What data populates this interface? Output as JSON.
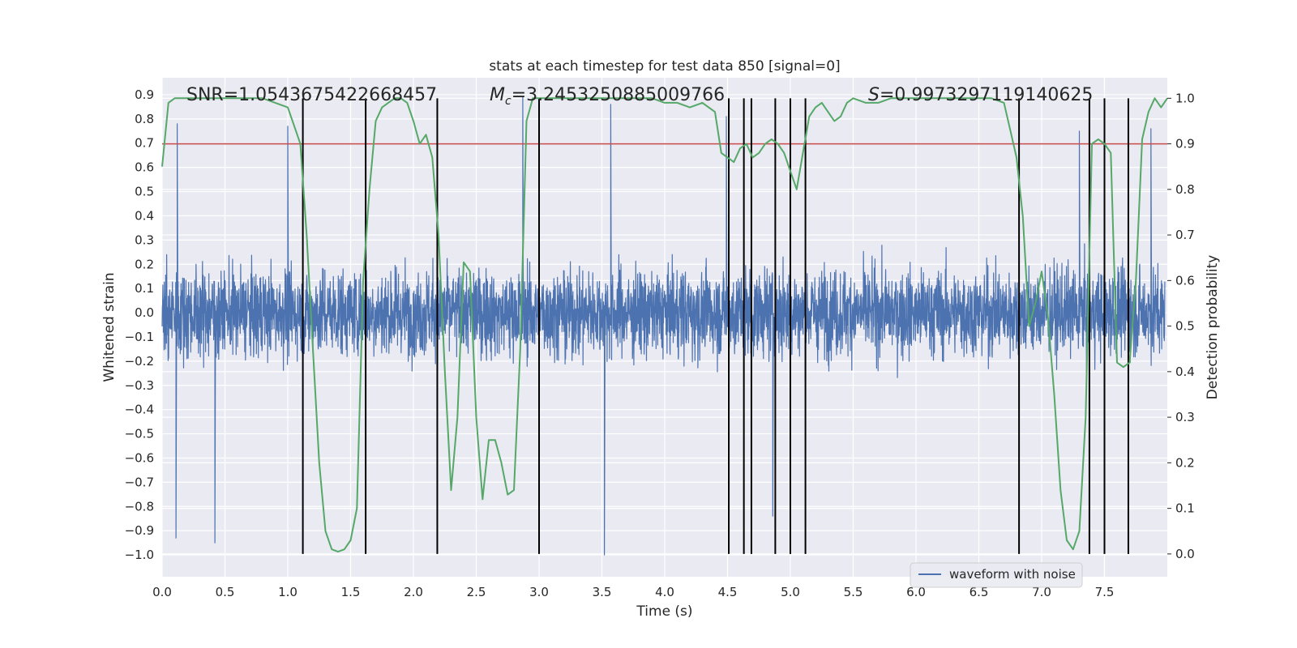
{
  "chart_data": {
    "type": "line",
    "title": "stats at each timestep for test data 850 [signal=0]",
    "xlabel": "Time (s)",
    "ylabel_left": "Whitened strain",
    "ylabel_right": "Detection probability",
    "xlim": [
      0.0,
      8.0
    ],
    "ylim_left": [
      -1.09,
      0.97
    ],
    "ylim_right": [
      -0.05,
      1.045
    ],
    "x_ticks": [
      "0.0",
      "0.5",
      "1.0",
      "1.5",
      "2.0",
      "2.5",
      "3.0",
      "3.5",
      "4.0",
      "4.5",
      "5.0",
      "5.5",
      "6.0",
      "6.5",
      "7.0",
      "7.5"
    ],
    "y_ticks_left": [
      "0.9",
      "0.8",
      "0.7",
      "0.6",
      "0.5",
      "0.4",
      "0.3",
      "0.2",
      "0.1",
      "0.0",
      "-0.1",
      "-0.2",
      "-0.3",
      "-0.4",
      "-0.5",
      "-0.6",
      "-0.7",
      "-0.8",
      "-0.9",
      "-1.0"
    ],
    "y_ticks_right": [
      "1.0",
      "0.9",
      "0.8",
      "0.7",
      "0.6",
      "0.5",
      "0.4",
      "0.3",
      "0.2",
      "0.1",
      "0.0"
    ],
    "annotations": {
      "snr": "SNR=1.0543675422668457",
      "mc_symbol": "M",
      "mc_sub": "c",
      "mc_value": "=3.2453250885009766",
      "s_symbol": "S",
      "s_value": "=0.9973297119140625"
    },
    "threshold": {
      "value": 0.9,
      "axis": "right",
      "color": "#c44e52"
    },
    "vertical_lines": [
      1.12,
      1.62,
      2.19,
      3.0,
      4.51,
      4.63,
      4.69,
      4.88,
      5.0,
      5.12,
      6.82,
      7.38,
      7.5,
      7.69
    ],
    "series": [
      {
        "name": "waveform with noise",
        "axis": "left",
        "color": "#4c72b0",
        "kind": "noise",
        "typical_amplitude": 0.33,
        "notable_peaks": [
          {
            "x": 0.12,
            "y": 0.78
          },
          {
            "x": 0.11,
            "y": -0.93
          },
          {
            "x": 0.42,
            "y": -0.95
          },
          {
            "x": 1.0,
            "y": 0.77
          },
          {
            "x": 2.87,
            "y": 0.89
          },
          {
            "x": 3.52,
            "y": -1.0
          },
          {
            "x": 3.57,
            "y": 0.86
          },
          {
            "x": 4.49,
            "y": 0.81
          },
          {
            "x": 4.86,
            "y": -0.84
          },
          {
            "x": 7.3,
            "y": 0.75
          },
          {
            "x": 7.87,
            "y": 0.76
          }
        ]
      },
      {
        "name": "detection probability",
        "axis": "right",
        "color": "#55a868",
        "x": [
          0.0,
          0.05,
          0.1,
          0.2,
          0.3,
          0.4,
          0.5,
          0.6,
          0.7,
          0.8,
          0.9,
          1.0,
          1.05,
          1.1,
          1.15,
          1.2,
          1.25,
          1.3,
          1.35,
          1.4,
          1.45,
          1.5,
          1.55,
          1.6,
          1.65,
          1.7,
          1.75,
          1.8,
          1.85,
          1.9,
          1.95,
          2.0,
          2.05,
          2.1,
          2.15,
          2.2,
          2.25,
          2.3,
          2.35,
          2.4,
          2.45,
          2.5,
          2.55,
          2.6,
          2.65,
          2.7,
          2.75,
          2.8,
          2.85,
          2.9,
          2.95,
          3.0,
          3.05,
          3.1,
          3.15,
          3.2,
          3.3,
          3.5,
          3.7,
          3.9,
          4.0,
          4.1,
          4.2,
          4.3,
          4.4,
          4.45,
          4.5,
          4.55,
          4.6,
          4.65,
          4.7,
          4.75,
          4.8,
          4.85,
          4.9,
          4.95,
          5.0,
          5.05,
          5.1,
          5.15,
          5.2,
          5.25,
          5.3,
          5.35,
          5.4,
          5.45,
          5.5,
          5.6,
          5.7,
          5.8,
          5.9,
          6.0,
          6.2,
          6.4,
          6.6,
          6.7,
          6.75,
          6.8,
          6.85,
          6.9,
          6.95,
          7.0,
          7.05,
          7.1,
          7.15,
          7.2,
          7.25,
          7.3,
          7.35,
          7.4,
          7.45,
          7.5,
          7.55,
          7.6,
          7.65,
          7.7,
          7.75,
          7.8,
          7.85,
          7.9,
          7.95,
          8.0
        ],
        "y": [
          0.85,
          0.99,
          1.0,
          1.0,
          1.0,
          1.0,
          1.0,
          1.0,
          1.0,
          1.0,
          0.99,
          0.98,
          0.94,
          0.9,
          0.7,
          0.45,
          0.2,
          0.05,
          0.01,
          0.005,
          0.01,
          0.03,
          0.1,
          0.6,
          0.8,
          0.95,
          0.98,
          0.99,
          1.0,
          1.0,
          0.99,
          0.95,
          0.9,
          0.92,
          0.87,
          0.7,
          0.4,
          0.14,
          0.3,
          0.64,
          0.62,
          0.3,
          0.12,
          0.25,
          0.25,
          0.2,
          0.13,
          0.14,
          0.45,
          0.95,
          1.0,
          1.0,
          1.0,
          1.0,
          1.0,
          1.0,
          1.0,
          1.0,
          1.0,
          1.0,
          0.99,
          0.99,
          0.98,
          0.99,
          0.97,
          0.88,
          0.87,
          0.86,
          0.89,
          0.9,
          0.87,
          0.88,
          0.9,
          0.91,
          0.9,
          0.88,
          0.84,
          0.8,
          0.88,
          0.96,
          0.98,
          0.99,
          0.97,
          0.95,
          0.96,
          0.99,
          1.0,
          0.99,
          0.99,
          1.0,
          1.0,
          1.0,
          1.0,
          1.0,
          1.0,
          0.99,
          0.93,
          0.87,
          0.74,
          0.5,
          0.55,
          0.62,
          0.52,
          0.35,
          0.14,
          0.03,
          0.01,
          0.05,
          0.3,
          0.9,
          0.91,
          0.9,
          0.88,
          0.42,
          0.41,
          0.42,
          0.6,
          0.91,
          0.97,
          1.0,
          0.98,
          1.0
        ]
      }
    ],
    "legend": {
      "position": "lower-right",
      "entries": [
        "waveform with noise"
      ]
    },
    "grid": true
  }
}
